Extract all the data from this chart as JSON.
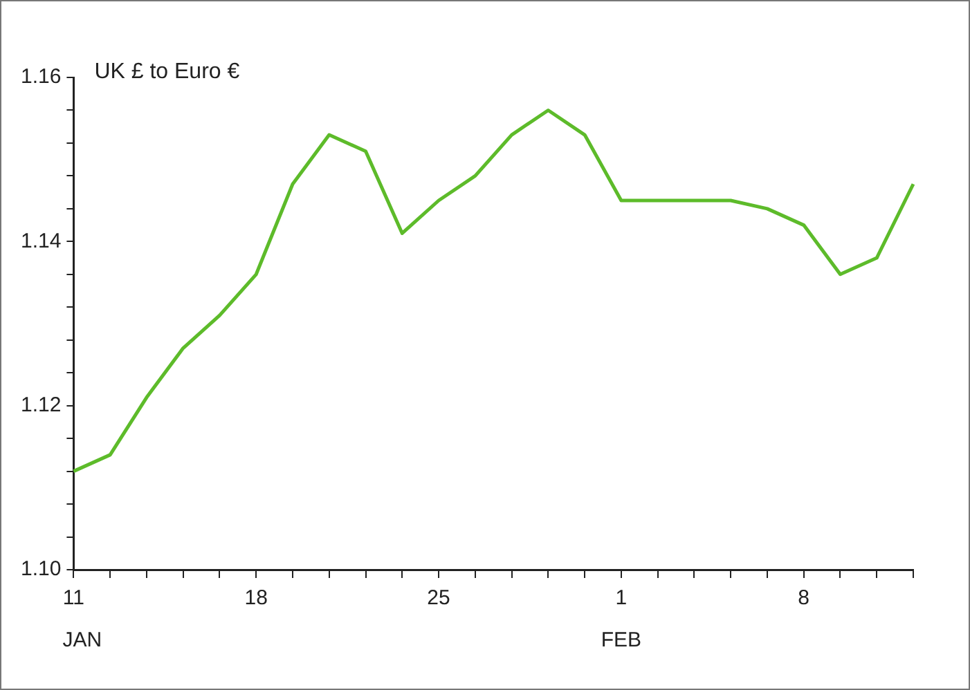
{
  "chart_data": {
    "type": "line",
    "title": "UK £ to Euro €",
    "categories": [
      "11",
      null,
      null,
      null,
      null,
      "18",
      null,
      null,
      null,
      null,
      "25",
      null,
      null,
      null,
      null,
      "1",
      null,
      null,
      null,
      null,
      "8",
      null,
      null,
      null
    ],
    "series": [
      {
        "color": "#5dbb2a",
        "values": [
          1.112,
          1.114,
          1.121,
          1.127,
          1.131,
          1.136,
          1.147,
          1.153,
          1.151,
          1.141,
          1.145,
          1.148,
          1.153,
          1.156,
          1.153,
          1.145,
          1.145,
          1.145,
          1.145,
          1.144,
          1.142,
          1.136,
          1.138,
          1.147
        ]
      }
    ],
    "ylim": [
      1.1,
      1.16
    ],
    "yticks": [
      {
        "value": 1.1,
        "label": "1.10"
      },
      {
        "value": 1.104,
        "label": null
      },
      {
        "value": 1.108,
        "label": null
      },
      {
        "value": 1.112,
        "label": null
      },
      {
        "value": 1.116,
        "label": null
      },
      {
        "value": 1.12,
        "label": "1.12"
      },
      {
        "value": 1.124,
        "label": null
      },
      {
        "value": 1.128,
        "label": null
      },
      {
        "value": 1.132,
        "label": null
      },
      {
        "value": 1.136,
        "label": null
      },
      {
        "value": 1.14,
        "label": "1.14"
      },
      {
        "value": 1.144,
        "label": null
      },
      {
        "value": 1.148,
        "label": null
      },
      {
        "value": 1.152,
        "label": null
      },
      {
        "value": 1.156,
        "label": null
      },
      {
        "value": 1.16,
        "label": "1.16"
      }
    ],
    "annotations": [
      "JAN",
      "FEB"
    ],
    "grid": false,
    "legend": false,
    "marker": "none",
    "line_style": "solid"
  }
}
